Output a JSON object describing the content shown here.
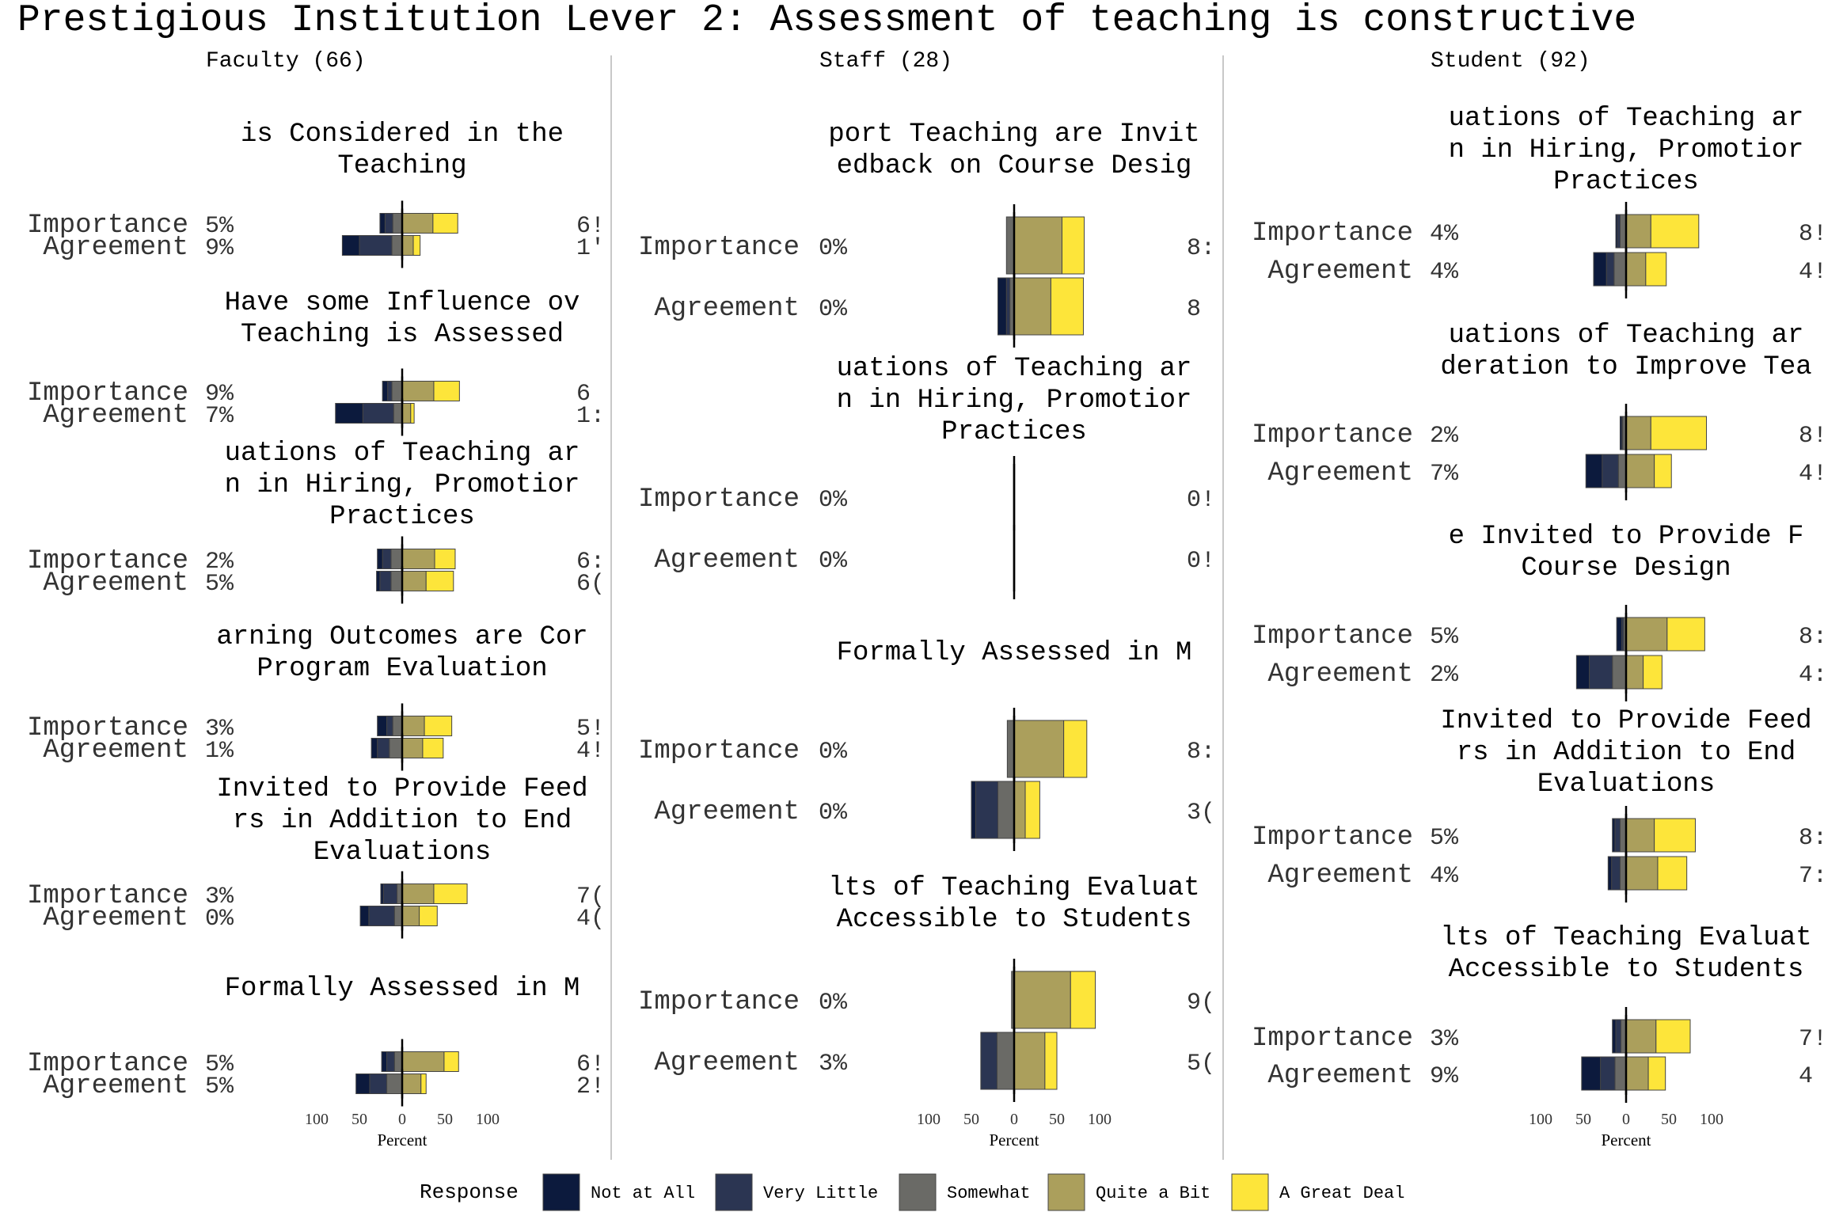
{
  "title": "Prestigious Institution Lever 2: Assessment of teaching is constructive",
  "colors": {
    "not_at_all": "#0c1a3d",
    "very_little": "#2b3552",
    "somewhat": "#6a6a66",
    "quite_a_bit": "#ab9f5c",
    "a_great_deal": "#fde53a",
    "zero_line": "#000000",
    "divider": "#c8c8c8",
    "bar_border": "#444444"
  },
  "legend": {
    "title": "Response",
    "items": [
      {
        "label": "Not at All",
        "color_key": "not_at_all"
      },
      {
        "label": "Very Little",
        "color_key": "very_little"
      },
      {
        "label": "Somewhat",
        "color_key": "somewhat"
      },
      {
        "label": "Quite a Bit",
        "color_key": "quite_a_bit"
      },
      {
        "label": "A Great Deal",
        "color_key": "a_great_deal"
      }
    ]
  },
  "chart_data": [
    {
      "type": "bar",
      "subtype": "diverging-stacked-likert",
      "panel": "Faculty (66)",
      "xlabel": "Percent",
      "xlim": [
        -100,
        100
      ],
      "xticks": [
        "100",
        "50",
        "0",
        "50",
        "100"
      ],
      "questions": [
        {
          "title_lines": [
            "is Considered in the",
            "Teaching"
          ],
          "rows": [
            {
              "label": "Importance",
              "left_pct": "5%",
              "right_pct": "6!",
              "segments": [
                -6,
                -9,
                -11,
                36,
                29
              ]
            },
            {
              "label": "Agreement",
              "left_pct": "9%",
              "right_pct": "1'",
              "segments": [
                -20,
                -38,
                -12,
                13,
                8
              ]
            }
          ]
        },
        {
          "title_lines": [
            "Have some Influence ov",
            "Teaching is Assessed"
          ],
          "rows": [
            {
              "label": "Importance",
              "left_pct": "9%",
              "right_pct": "6",
              "segments": [
                -6,
                -5,
                -12,
                37,
                30
              ]
            },
            {
              "label": "Agreement",
              "left_pct": "7%",
              "right_pct": "1:",
              "segments": [
                -32,
                -36,
                -10,
                10,
                4
              ]
            }
          ]
        },
        {
          "title_lines": [
            "uations of Teaching ar",
            "n in Hiring, Promotior",
            "Practices"
          ],
          "rows": [
            {
              "label": "Importance",
              "left_pct": "2%",
              "right_pct": "6:",
              "segments": [
                -6,
                -10,
                -13,
                38,
                24
              ]
            },
            {
              "label": "Agreement",
              "left_pct": "5%",
              "right_pct": "6(",
              "segments": [
                -4,
                -13,
                -13,
                28,
                32
              ]
            }
          ]
        },
        {
          "title_lines": [
            "arning Outcomes are Cor",
            "Program Evaluation"
          ],
          "rows": [
            {
              "label": "Importance",
              "left_pct": "3%",
              "right_pct": "5!",
              "segments": [
                -11,
                -7,
                -11,
                26,
                32
              ]
            },
            {
              "label": "Agreement",
              "left_pct": "1%",
              "right_pct": "4!",
              "segments": [
                -7,
                -14,
                -15,
                24,
                24
              ]
            }
          ]
        },
        {
          "title_lines": [
            "Invited to Provide Feed",
            "rs in Addition to End",
            "Evaluations"
          ],
          "rows": [
            {
              "label": "Importance",
              "left_pct": "3%",
              "right_pct": "7(",
              "segments": [
                -3,
                -16,
                -6,
                37,
                39
              ]
            },
            {
              "label": "Agreement",
              "left_pct": "0%",
              "right_pct": "4(",
              "segments": [
                -10,
                -30,
                -9,
                20,
                21
              ]
            }
          ]
        },
        {
          "title_lines": [
            "Formally Assessed in M"
          ],
          "rows": [
            {
              "label": "Importance",
              "left_pct": "5%",
              "right_pct": "6!",
              "segments": [
                -6,
                -9,
                -9,
                49,
                17
              ]
            },
            {
              "label": "Agreement",
              "left_pct": "5%",
              "right_pct": "2!",
              "segments": [
                -16,
                -20,
                -18,
                22,
                6
              ]
            }
          ]
        }
      ]
    },
    {
      "type": "bar",
      "subtype": "diverging-stacked-likert",
      "panel": "Staff (28)",
      "xlabel": "Percent",
      "xlim": [
        -100,
        100
      ],
      "xticks": [
        "100",
        "50",
        "0",
        "50",
        "100"
      ],
      "questions": [
        {
          "title_lines": [
            "port Teaching are Invit",
            "edback on Course Desig"
          ],
          "rows": [
            {
              "label": "Importance",
              "left_pct": "0%",
              "right_pct": "8:",
              "segments": [
                0,
                0,
                -9,
                56,
                26
              ]
            },
            {
              "label": "Agreement",
              "left_pct": "0%",
              "right_pct": "8",
              "segments": [
                -10,
                -4,
                -5,
                43,
                38
              ]
            }
          ]
        },
        {
          "title_lines": [
            "uations of Teaching ar",
            "n in Hiring, Promotior",
            "Practices"
          ],
          "rows": [
            {
              "label": "Importance",
              "left_pct": "0%",
              "right_pct": "0!",
              "segments": [
                0,
                0,
                0,
                0,
                0
              ]
            },
            {
              "label": "Agreement",
              "left_pct": "0%",
              "right_pct": "0!",
              "segments": [
                0,
                0,
                0,
                0,
                0
              ]
            }
          ]
        },
        {
          "title_lines": [
            "Formally Assessed in M"
          ],
          "rows": [
            {
              "label": "Importance",
              "left_pct": "0%",
              "right_pct": "8:",
              "segments": [
                0,
                0,
                -8,
                58,
                27
              ]
            },
            {
              "label": "Agreement",
              "left_pct": "0%",
              "right_pct": "3(",
              "segments": [
                -5,
                -26,
                -19,
                13,
                17
              ]
            }
          ]
        },
        {
          "title_lines": [
            "lts of Teaching Evaluat",
            "Accessible to Students"
          ],
          "rows": [
            {
              "label": "Importance",
              "left_pct": "0%",
              "right_pct": "9(",
              "segments": [
                0,
                0,
                -3,
                66,
                29
              ]
            },
            {
              "label": "Agreement",
              "left_pct": "3%",
              "right_pct": "5(",
              "segments": [
                0,
                -19,
                -20,
                36,
                14
              ]
            }
          ]
        }
      ]
    },
    {
      "type": "bar",
      "subtype": "diverging-stacked-likert",
      "panel": "Student (92)",
      "xlabel": "Percent",
      "xlim": [
        -100,
        100
      ],
      "xticks": [
        "100",
        "50",
        "0",
        "50",
        "100"
      ],
      "questions": [
        {
          "title_lines": [
            "uations of Teaching ar",
            "n in Hiring, Promotior",
            "Practices"
          ],
          "rows": [
            {
              "label": "Importance",
              "left_pct": "4%",
              "right_pct": "8!",
              "segments": [
                -2,
                -3,
                -7,
                29,
                56
              ]
            },
            {
              "label": "Agreement",
              "left_pct": "4%",
              "right_pct": "4!",
              "segments": [
                -15,
                -9,
                -14,
                23,
                24
              ]
            }
          ]
        },
        {
          "title_lines": [
            "uations of Teaching ar",
            "deration to Improve Tea"
          ],
          "rows": [
            {
              "label": "Importance",
              "left_pct": "2%",
              "right_pct": "8!",
              "segments": [
                -2,
                -1,
                -4,
                29,
                65
              ]
            },
            {
              "label": "Agreement",
              "left_pct": "7%",
              "right_pct": "4!",
              "segments": [
                -19,
                -19,
                -9,
                33,
                20
              ]
            }
          ]
        },
        {
          "title_lines": [
            "e Invited to Provide F",
            "Course Design"
          ],
          "rows": [
            {
              "label": "Importance",
              "left_pct": "5%",
              "right_pct": "8:",
              "segments": [
                -6,
                -2,
                -3,
                48,
                44
              ]
            },
            {
              "label": "Agreement",
              "left_pct": "2%",
              "right_pct": "4:",
              "segments": [
                -15,
                -27,
                -16,
                20,
                22
              ]
            }
          ]
        },
        {
          "title_lines": [
            "Invited to Provide Feed",
            "rs in Addition to End",
            "Evaluations"
          ],
          "rows": [
            {
              "label": "Importance",
              "left_pct": "5%",
              "right_pct": "8:",
              "segments": [
                -3,
                -6,
                -7,
                33,
                48
              ]
            },
            {
              "label": "Agreement",
              "left_pct": "4%",
              "right_pct": "7:",
              "segments": [
                -4,
                -10,
                -7,
                37,
                34
              ]
            }
          ]
        },
        {
          "title_lines": [
            "lts of Teaching Evaluat",
            "Accessible to Students"
          ],
          "rows": [
            {
              "label": "Importance",
              "left_pct": "3%",
              "right_pct": "7!",
              "segments": [
                -4,
                -6,
                -6,
                35,
                40
              ]
            },
            {
              "label": "Agreement",
              "left_pct": "9%",
              "right_pct": "4",
              "segments": [
                -22,
                -17,
                -13,
                26,
                20
              ]
            }
          ]
        }
      ]
    }
  ]
}
